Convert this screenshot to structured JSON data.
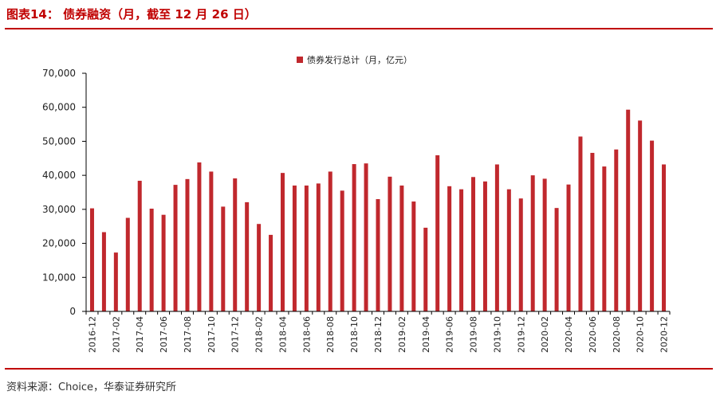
{
  "header": {
    "title": "图表14：  债券融资（月，截至 12 月 26 日）"
  },
  "footer": {
    "source": "资料来源：Choice，华泰证券研究所"
  },
  "colors": {
    "bar": "#c0282d",
    "rule": "#c00000",
    "axis": "#000000",
    "text": "#222222"
  },
  "chart_data": {
    "type": "bar",
    "title": "",
    "xlabel": "",
    "ylabel": "",
    "ylim": [
      0,
      70000
    ],
    "yticks": [
      "0",
      "10,000",
      "20,000",
      "30,000",
      "40,000",
      "50,000",
      "60,000",
      "70,000"
    ],
    "grid": false,
    "legend_position": "top-center",
    "series": [
      {
        "name": "债券发行总计（月，亿元）",
        "values": [
          30300,
          23300,
          17300,
          27500,
          38400,
          30200,
          28400,
          37200,
          38900,
          43800,
          41100,
          30800,
          39100,
          32100,
          25700,
          22500,
          40700,
          37000,
          37000,
          37600,
          41100,
          35500,
          43300,
          43500,
          33000,
          39600,
          37000,
          32300,
          24600,
          45900,
          36800,
          35900,
          39500,
          38200,
          43200,
          35900,
          33200,
          40000,
          39000,
          30400,
          37300,
          51400,
          46600,
          42600,
          47600,
          59300,
          56100,
          50200,
          43200
        ]
      }
    ],
    "categories": [
      "2016-12",
      "2017-01",
      "2017-02",
      "2017-03",
      "2017-04",
      "2017-05",
      "2017-06",
      "2017-07",
      "2017-08",
      "2017-09",
      "2017-10",
      "2017-11",
      "2017-12",
      "2018-01",
      "2018-02",
      "2018-03",
      "2018-04",
      "2018-05",
      "2018-06",
      "2018-07",
      "2018-08",
      "2018-09",
      "2018-10",
      "2018-11",
      "2018-12",
      "2019-01",
      "2019-02",
      "2019-03",
      "2019-04",
      "2019-05",
      "2019-06",
      "2019-07",
      "2019-08",
      "2019-09",
      "2019-10",
      "2019-11",
      "2019-12",
      "2020-01",
      "2020-02",
      "2020-03",
      "2020-04",
      "2020-05",
      "2020-06",
      "2020-07",
      "2020-08",
      "2020-09",
      "2020-10",
      "2020-11",
      "2020-12"
    ],
    "tick_labels": [
      "2016-12",
      "2017-02",
      "2017-04",
      "2017-06",
      "2017-08",
      "2017-10",
      "2017-12",
      "2018-02",
      "2018-04",
      "2018-06",
      "2018-08",
      "2018-10",
      "2018-12",
      "2019-02",
      "2019-04",
      "2019-06",
      "2019-08",
      "2019-10",
      "2019-12",
      "2020-02",
      "2020-04",
      "2020-06",
      "2020-08",
      "2020-10",
      "2020-12"
    ]
  }
}
